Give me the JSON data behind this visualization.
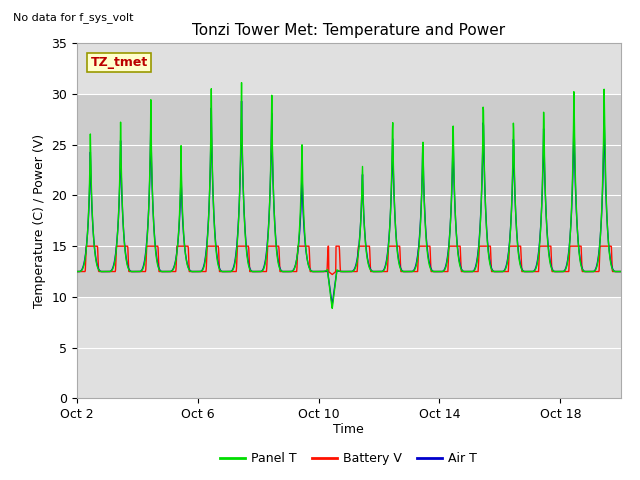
{
  "title": "Tonzi Tower Met: Temperature and Power",
  "top_left_text": "No data for f_sys_volt",
  "ylabel": "Temperature (C) / Power (V)",
  "xlabel": "Time",
  "ylim": [
    0,
    35
  ],
  "yticks": [
    0,
    5,
    10,
    15,
    20,
    25,
    30,
    35
  ],
  "xtick_labels": [
    "Oct 2",
    "Oct 6",
    "Oct 10",
    "Oct 14",
    "Oct 18"
  ],
  "xtick_positions": [
    0,
    4,
    8,
    12,
    16
  ],
  "xlim": [
    0,
    18
  ],
  "legend_entries": [
    "Panel T",
    "Battery V",
    "Air T"
  ],
  "panel_color": "#00dd00",
  "battery_color": "#ff1100",
  "air_color": "#0000cc",
  "plot_bg_color": "#e0e0e0",
  "band_facecolor": "#cccccc",
  "band_ymin": 10,
  "band_ymax": 30,
  "grid_color": "#ffffff",
  "annotation_box_text": "TZ_tmet",
  "annotation_box_bg": "#ffffcc",
  "annotation_box_edge": "#999900",
  "n_days": 18,
  "points_per_day": 96
}
